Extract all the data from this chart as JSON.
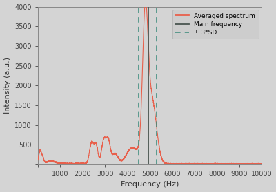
{
  "title": "",
  "xlabel": "Frequency (Hz)",
  "ylabel": "Intensity (a.u.)",
  "xlim": [
    0,
    10000
  ],
  "ylim": [
    0,
    4000
  ],
  "main_frequency": 4950,
  "sd_low": 4500,
  "sd_high": 5300,
  "background_color": "#d4d4d4",
  "spectrum_color": "#e8604c",
  "main_freq_color": "#4a5550",
  "sd_color": "#3a8a7a",
  "legend_labels": [
    "Averaged spectrum",
    "Main frequency",
    "± 3*SD"
  ],
  "yticks": [
    0,
    500,
    1000,
    1500,
    2000,
    2500,
    3000,
    3500,
    4000
  ],
  "xticks": [
    0,
    1000,
    2000,
    3000,
    4000,
    5000,
    6000,
    7000,
    8000,
    9000,
    10000
  ]
}
